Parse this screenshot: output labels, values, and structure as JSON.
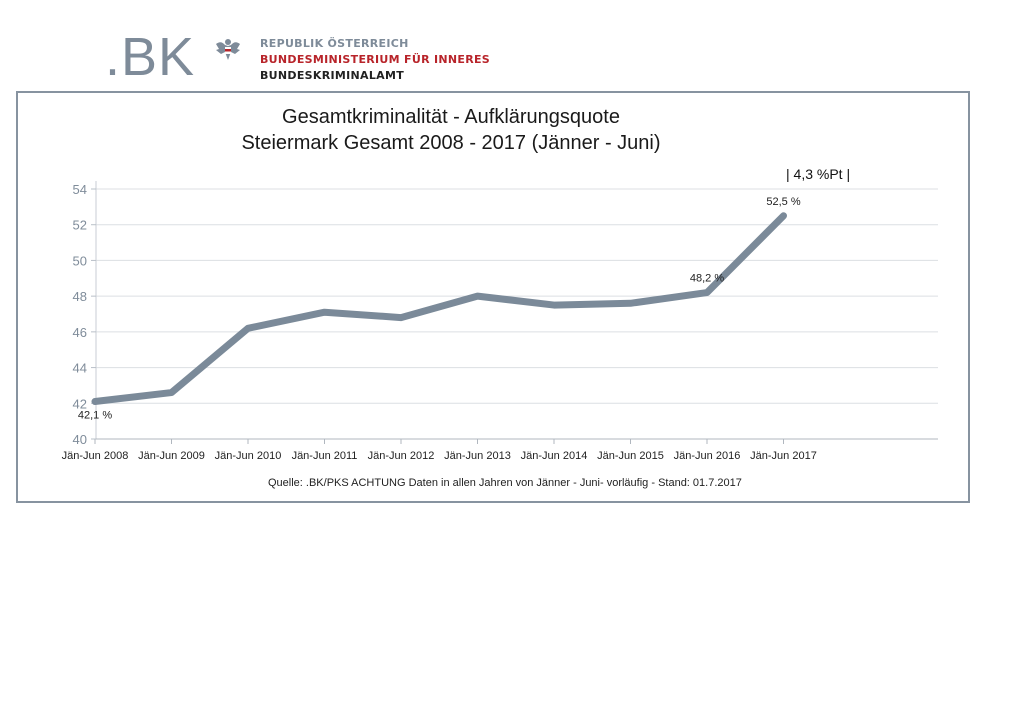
{
  "header": {
    "logo_text": ".BK",
    "org_line1": "REPUBLIK ÖSTERREICH",
    "org_line2": "BUNDESMINISTERIUM FÜR INNERES",
    "org_line3": "BUNDESKRIMINALAMT",
    "colors": {
      "logo": "#7e8b99",
      "org_line2": "#b8242a"
    }
  },
  "chart_data": {
    "type": "line",
    "title": "Gesamtkriminalität - Aufklärungsquote",
    "subtitle": "Steiermark Gesamt 2008 - 2017 (Jänner - Juni)",
    "categories": [
      "Jän-Jun 2008",
      "Jän-Jun 2009",
      "Jän-Jun 2010",
      "Jän-Jun 2011",
      "Jän-Jun 2012",
      "Jän-Jun 2013",
      "Jän-Jun 2014",
      "Jän-Jun 2015",
      "Jän-Jun 2016",
      "Jän-Jun 2017"
    ],
    "series": [
      {
        "values": [
          42.1,
          42.6,
          46.2,
          47.1,
          46.8,
          48.0,
          47.5,
          47.6,
          48.2,
          52.5
        ],
        "color": "#7b8a99"
      }
    ],
    "ylim": [
      40,
      54
    ],
    "yticks": [
      40,
      42,
      44,
      46,
      48,
      50,
      52,
      54
    ],
    "grid": true,
    "legend": "none",
    "data_labels": [
      {
        "index": 0,
        "text": "42,1 %"
      },
      {
        "index": 8,
        "text": "48,2 %"
      },
      {
        "index": 9,
        "text": "52,5 %"
      }
    ],
    "annotation": "| 4,3  %Pt |",
    "source": "Quelle:    .BK/PKS ACHTUNG Daten in allen Jahren von Jänner - Juni-  vorläufig  -  Stand: 01.7.2017"
  }
}
